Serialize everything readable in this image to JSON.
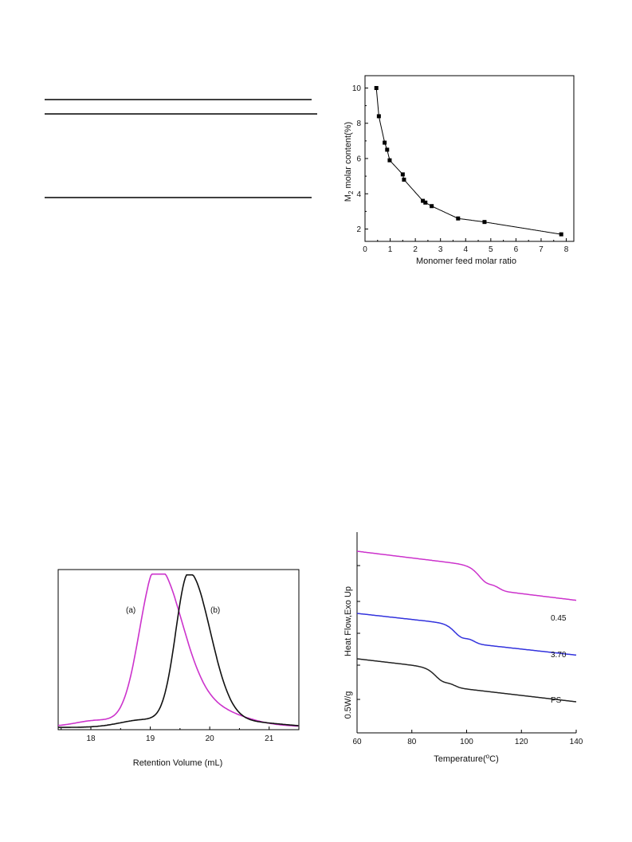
{
  "table_lines": {
    "count": 3
  },
  "chart_data": [
    {
      "type": "scatter",
      "title": "",
      "xlabel": "Monomer feed molar ratio",
      "ylabel_main": "M",
      "ylabel_sub": "2",
      "ylabel_rest": " molar content(%)",
      "xlim": [
        0,
        8.3
      ],
      "ylim": [
        1.3,
        10.7
      ],
      "x_ticks": [
        "0",
        "1",
        "2",
        "3",
        "4",
        "5",
        "6",
        "7",
        "8"
      ],
      "y_ticks": [
        "2",
        "4",
        "6",
        "8",
        "10"
      ],
      "grid": false,
      "series": [
        {
          "points": [
            [
              0.45,
              10.0
            ],
            [
              0.55,
              8.4
            ],
            [
              0.78,
              6.9
            ],
            [
              0.88,
              6.5
            ],
            [
              0.98,
              5.9
            ],
            [
              1.5,
              5.1
            ],
            [
              1.55,
              4.8
            ],
            [
              2.3,
              3.6
            ],
            [
              2.4,
              3.5
            ],
            [
              2.65,
              3.3
            ],
            [
              3.7,
              2.6
            ],
            [
              4.75,
              2.4
            ],
            [
              7.8,
              1.7
            ]
          ],
          "marker": "square",
          "color": "#000000",
          "fit_curve": true
        }
      ]
    },
    {
      "type": "line",
      "title": "",
      "xlabel": "Retention Volume (mL)",
      "ylabel": "",
      "xlim": [
        17.45,
        21.5
      ],
      "ylim": [
        0,
        1.05
      ],
      "x_ticks": [
        "18",
        "19",
        "20",
        "21"
      ],
      "grid": false,
      "series": [
        {
          "name": "(a)",
          "color": "#cc33cc",
          "peak_x": 19.1
        },
        {
          "name": "(b)",
          "color": "#111111",
          "peak_x": 19.65
        }
      ]
    },
    {
      "type": "line",
      "title": "",
      "xlabel": "Temperature(",
      "xlabel_sup": "o",
      "xlabel_end": "C)",
      "ylabel": "Heat Flow,Exo Up",
      "scale_label": "0.5W/g",
      "xlim": [
        60,
        140
      ],
      "x_ticks": [
        "60",
        "80",
        "100",
        "120",
        "140"
      ],
      "grid": false,
      "series": [
        {
          "name": "0.45",
          "color": "#cc33cc"
        },
        {
          "name": "3.70",
          "color": "#3333dd"
        },
        {
          "name": "PS",
          "color": "#222222"
        }
      ]
    }
  ]
}
